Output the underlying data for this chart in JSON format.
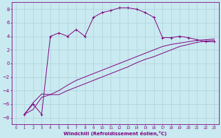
{
  "background_color": "#c8eaf0",
  "grid_color": "#b0d0d8",
  "line_color": "#800080",
  "marker_color": "#800080",
  "xlabel": "Windchill (Refroidissement éolien,°C)",
  "xlabel_color": "#800080",
  "tick_color": "#800080",
  "xlim": [
    -0.5,
    23.5
  ],
  "ylim": [
    -9,
    9
  ],
  "yticks": [
    -8,
    -6,
    -4,
    -2,
    0,
    2,
    4,
    6,
    8
  ],
  "xticks": [
    0,
    1,
    2,
    3,
    4,
    5,
    6,
    7,
    8,
    9,
    10,
    11,
    12,
    13,
    14,
    15,
    16,
    17,
    18,
    19,
    20,
    21,
    22,
    23
  ],
  "curve1_x": [
    1,
    2,
    3,
    4,
    5,
    6,
    7,
    8,
    9,
    10,
    11,
    12,
    13,
    14,
    15,
    16,
    17,
    18,
    19,
    20,
    21,
    22,
    23
  ],
  "curve1_y": [
    -7.5,
    -6.0,
    -7.5,
    4.0,
    4.5,
    4.0,
    5.0,
    4.0,
    6.8,
    7.5,
    7.8,
    8.2,
    8.2,
    8.0,
    7.5,
    6.8,
    3.8,
    3.8,
    4.0,
    3.8,
    3.5,
    3.2,
    3.2
  ],
  "curve2_x": [
    1,
    2,
    3,
    4,
    5,
    6,
    7,
    8,
    9,
    10,
    11,
    12,
    13,
    14,
    15,
    16,
    17,
    18,
    19,
    20,
    21,
    22,
    23
  ],
  "curve2_y": [
    -7.5,
    -5.8,
    -4.5,
    -4.6,
    -4.6,
    -4.0,
    -3.5,
    -3.0,
    -2.5,
    -2.0,
    -1.5,
    -1.0,
    -0.5,
    0.1,
    0.6,
    1.0,
    1.5,
    2.0,
    2.5,
    2.8,
    3.1,
    3.3,
    3.4
  ],
  "curve3_x": [
    1,
    2,
    3,
    4,
    5,
    6,
    7,
    8,
    9,
    10,
    11,
    12,
    13,
    14,
    15,
    16,
    17,
    18,
    19,
    20,
    21,
    22,
    23
  ],
  "curve3_y": [
    -7.5,
    -6.8,
    -5.0,
    -4.6,
    -4.0,
    -3.2,
    -2.5,
    -2.0,
    -1.5,
    -1.0,
    -0.5,
    0.0,
    0.5,
    1.0,
    1.5,
    2.0,
    2.5,
    2.8,
    3.0,
    3.2,
    3.4,
    3.5,
    3.6
  ]
}
